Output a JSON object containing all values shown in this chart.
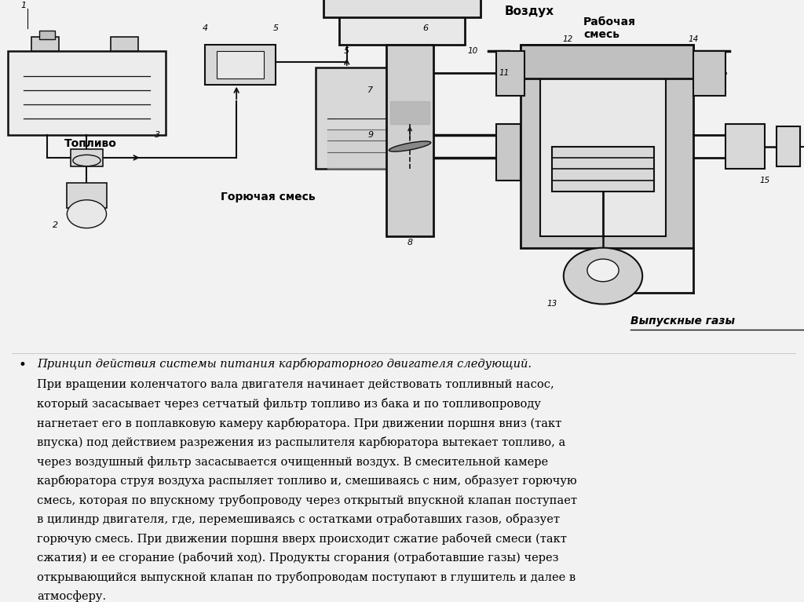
{
  "bg_color": "#f2f2f2",
  "title_italic_text": "Принцип действия системы питания карбюраторного двигателя следующий.",
  "body_text_lines": [
    "При вращении коленчатого вала двигателя начинает действовать топливный насос,",
    "который засасывает через сетчатый фильтр топливо из бака и по топливопроводу",
    "нагнетает его в поплавковую камеру карбюратора. При движении поршня вниз (такт",
    "впуска) под действием разрежения из распылителя карбюратора вытекает топливо, а",
    "через воздушный фильтр засасывается очищенный воздух. В смесительной камере",
    "карбюратора струя воздуха распыляет топливо и, смешиваясь с ним, образует горючую",
    "смесь, которая по впускному трубопроводу через открытый впускной клапан поступает",
    "в цилиндр двигателя, где, перемешиваясь с остатками отработавших газов, образует",
    "горючую смесь. При движении поршня вверх происходит сжатие рабочей смеси (такт",
    "сжатия) и ее сгорание (рабочий ход). Продукты сгорания (отработавшие газы) через",
    "открывающийся выпускной клапан по трубопроводам поступают в глушитель и далее в",
    "атмосферу."
  ],
  "vozduh": "Воздух",
  "rabochaya_smes": "Рабочая\nсмесь",
  "toplivo": "Топливо",
  "goryuchaya_smes": "Горючая смесь",
  "vypusknye_gazy": "Выпускные газы"
}
